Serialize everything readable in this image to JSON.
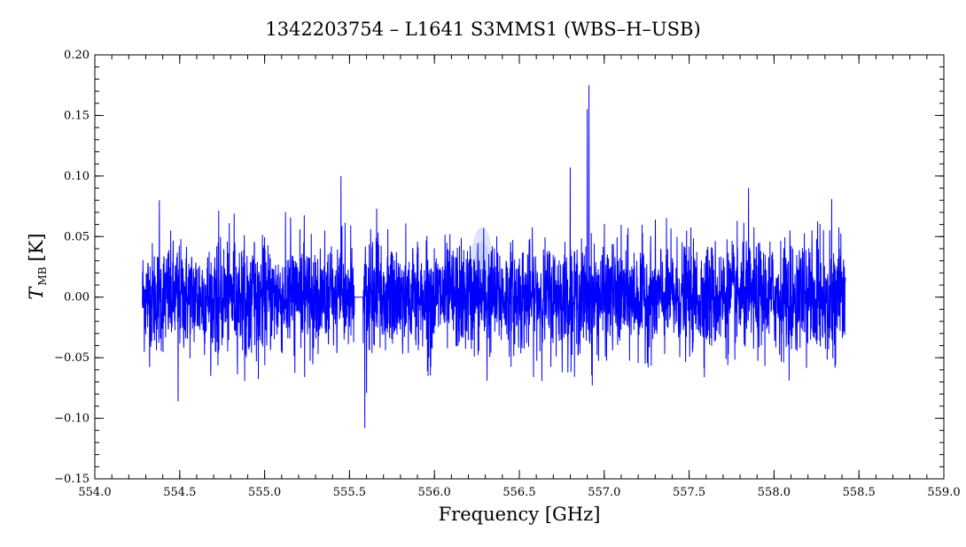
{
  "chart_data": {
    "type": "line",
    "title": "1342203754 – L1641 S3MMS1 (WBS–H–USB)",
    "xlabel": "Frequency [GHz]",
    "ylabel_main": "T",
    "ylabel_sub": "MB",
    "ylabel_unit": "[K]",
    "xlim": [
      554.0,
      559.0
    ],
    "ylim": [
      -0.15,
      0.2
    ],
    "x_ticks": [
      554.0,
      554.5,
      555.0,
      555.5,
      556.0,
      556.5,
      557.0,
      557.5,
      558.0,
      558.5,
      559.0
    ],
    "x_tick_labels": [
      "554.0",
      "554.5",
      "555.0",
      "555.5",
      "556.0",
      "556.5",
      "557.0",
      "557.5",
      "558.0",
      "558.5",
      "559.0"
    ],
    "y_ticks": [
      -0.15,
      -0.1,
      -0.05,
      0.0,
      0.05,
      0.1,
      0.15,
      0.2
    ],
    "y_tick_labels": [
      "−0.15",
      "−0.10",
      "−0.05",
      "0.00",
      "0.05",
      "0.10",
      "0.15",
      "0.20"
    ],
    "grid": false,
    "series": [
      {
        "color": "#0000ff",
        "x_start": 554.28,
        "x_end": 558.42,
        "noise_rms": 0.022,
        "blank_range": [
          555.53,
          555.58
        ],
        "features": [
          {
            "x": 554.38,
            "y": 0.08
          },
          {
            "x": 554.49,
            "y": -0.086
          },
          {
            "x": 554.82,
            "y": 0.069
          },
          {
            "x": 555.45,
            "y": 0.1
          },
          {
            "x": 555.59,
            "y": -0.108
          },
          {
            "x": 555.6,
            "y": -0.079
          },
          {
            "x": 555.66,
            "y": 0.073
          },
          {
            "x": 556.29,
            "y": 0.057
          },
          {
            "x": 556.31,
            "y": -0.069
          },
          {
            "x": 556.8,
            "y": 0.107
          },
          {
            "x": 556.9,
            "y": 0.155
          },
          {
            "x": 556.91,
            "y": 0.175
          },
          {
            "x": 556.93,
            "y": -0.073
          },
          {
            "x": 557.85,
            "y": 0.09
          },
          {
            "x": 558.34,
            "y": 0.081
          }
        ]
      }
    ],
    "highlight": {
      "x_center": 556.28,
      "y_center": 0.02,
      "x_halfwidth": 0.07,
      "y_halfwidth": 0.038,
      "color": "#a0b4f0"
    }
  }
}
